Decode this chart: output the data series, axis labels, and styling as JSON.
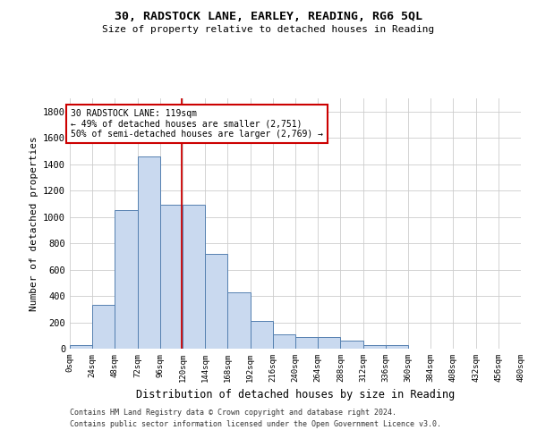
{
  "title": "30, RADSTOCK LANE, EARLEY, READING, RG6 5QL",
  "subtitle": "Size of property relative to detached houses in Reading",
  "xlabel": "Distribution of detached houses by size in Reading",
  "ylabel": "Number of detached properties",
  "footer_line1": "Contains HM Land Registry data © Crown copyright and database right 2024.",
  "footer_line2": "Contains public sector information licensed under the Open Government Licence v3.0.",
  "bin_edges": [
    0,
    24,
    48,
    72,
    96,
    120,
    144,
    168,
    192,
    216,
    240,
    264,
    288,
    312,
    336,
    360,
    384,
    408,
    432,
    456,
    480
  ],
  "bar_heights": [
    25,
    330,
    1050,
    1460,
    1090,
    1090,
    720,
    430,
    210,
    110,
    90,
    90,
    60,
    30,
    30,
    0,
    0,
    0,
    0,
    0
  ],
  "bar_color": "#c9d9ef",
  "bar_edge_color": "#5580b0",
  "property_line_x": 119,
  "property_line_color": "#cc0000",
  "annotation_line1": "30 RADSTOCK LANE: 119sqm",
  "annotation_line2": "← 49% of detached houses are smaller (2,751)",
  "annotation_line3": "50% of semi-detached houses are larger (2,769) →",
  "annotation_box_color": "#cc0000",
  "ylim": [
    0,
    1900
  ],
  "xlim": [
    0,
    480
  ],
  "background_color": "#ffffff",
  "grid_color": "#cccccc",
  "yticks": [
    0,
    200,
    400,
    600,
    800,
    1000,
    1200,
    1400,
    1600,
    1800
  ],
  "tick_labels": [
    "0sqm",
    "24sqm",
    "48sqm",
    "72sqm",
    "96sqm",
    "120sqm",
    "144sqm",
    "168sqm",
    "192sqm",
    "216sqm",
    "240sqm",
    "264sqm",
    "288sqm",
    "312sqm",
    "336sqm",
    "360sqm",
    "384sqm",
    "408sqm",
    "432sqm",
    "456sqm",
    "480sqm"
  ]
}
